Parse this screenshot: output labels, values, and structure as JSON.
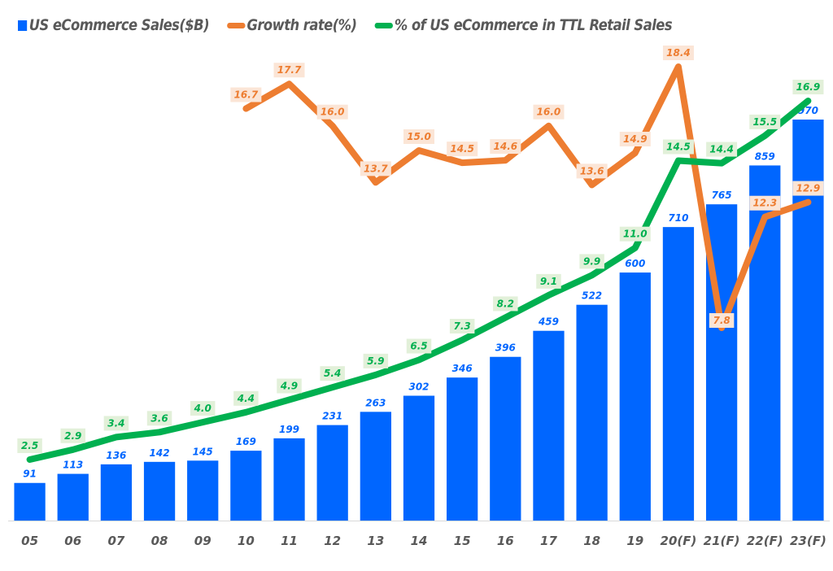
{
  "chart_data": {
    "type": "bar",
    "title": "",
    "xlabel": "",
    "ylabel": "",
    "grid": false,
    "legend_position": "top-left",
    "categories": [
      "05",
      "06",
      "07",
      "08",
      "09",
      "10",
      "11",
      "12",
      "13",
      "14",
      "15",
      "16",
      "17",
      "18",
      "19",
      "20(F)",
      "21(F)",
      "22(F)",
      "23(F)"
    ],
    "series": [
      {
        "name": "US eCommerce Sales($B)",
        "type": "bar",
        "color": "#0066ff",
        "values": [
          91,
          113,
          136,
          142,
          145,
          169,
          199,
          231,
          263,
          302,
          346,
          396,
          459,
          522,
          600,
          710,
          765,
          859,
          970
        ],
        "labels": [
          "91",
          "113",
          "136",
          "142",
          "145",
          "169",
          "199",
          "231",
          "263",
          "302",
          "346",
          "396",
          "459",
          "522",
          "600",
          "710",
          "765",
          "859",
          "970"
        ]
      },
      {
        "name": "Growth rate(%)",
        "type": "line",
        "color": "#ed7d31",
        "label_bg": "#fbe5d6",
        "values": [
          null,
          null,
          null,
          null,
          null,
          16.7,
          17.7,
          16.0,
          13.7,
          15.0,
          14.5,
          14.6,
          16.0,
          13.6,
          14.9,
          18.4,
          7.8,
          12.3,
          12.9
        ],
        "labels": [
          null,
          null,
          null,
          null,
          null,
          "16.7",
          "17.7",
          "16.0",
          "13.7",
          "15.0",
          "14.5",
          "14.6",
          "16.0",
          "13.6",
          "14.9",
          "18.4",
          "7.8",
          "12.3",
          "12.9"
        ]
      },
      {
        "name": "% of US eCommerce in TTL Retail Sales",
        "type": "line",
        "color": "#00b050",
        "label_bg": "#e2f0d9",
        "values": [
          2.5,
          2.9,
          3.4,
          3.6,
          4.0,
          4.4,
          4.9,
          5.4,
          5.9,
          6.5,
          7.3,
          8.2,
          9.1,
          9.9,
          11.0,
          14.5,
          14.4,
          15.5,
          16.9
        ],
        "labels": [
          "2.5",
          "2.9",
          "3.4",
          "3.6",
          "4.0",
          "4.4",
          "4.9",
          "5.4",
          "5.9",
          "6.5",
          "7.3",
          "8.2",
          "9.1",
          "9.9",
          "11.0",
          "14.5",
          "14.4",
          "15.5",
          "16.9"
        ]
      }
    ],
    "axes": {
      "bar_ylim": [
        0,
        1000
      ],
      "growth_ylim": [
        0,
        20
      ],
      "share_ylim": [
        0,
        20
      ]
    }
  },
  "legend": {
    "items": [
      {
        "label": "US eCommerce Sales($B)",
        "color": "#0066ff",
        "shape": "box"
      },
      {
        "label": "Growth rate(%)",
        "color": "#ed7d31",
        "shape": "line"
      },
      {
        "label": "% of US eCommerce in TTL Retail Sales",
        "color": "#00b050",
        "shape": "line"
      }
    ]
  }
}
